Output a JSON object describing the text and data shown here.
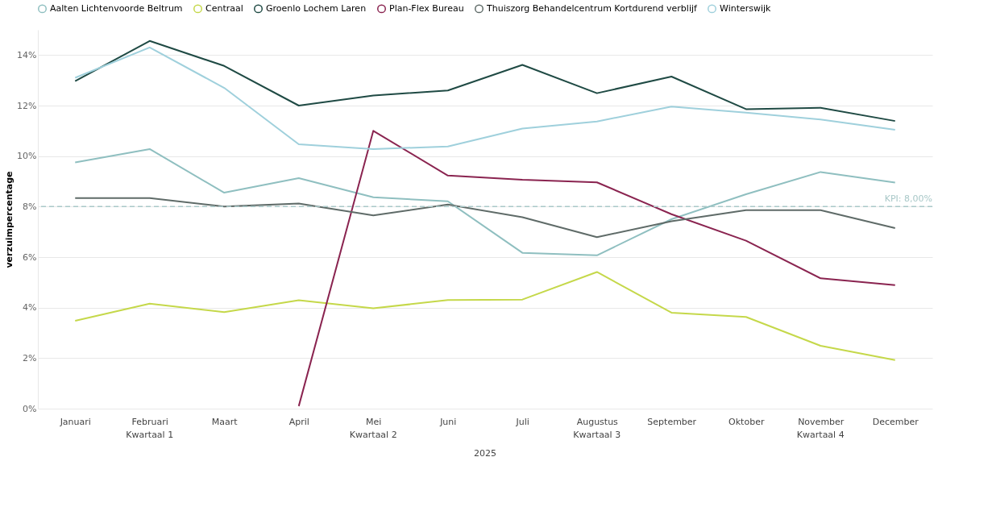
{
  "chart_data": {
    "type": "line",
    "ylabel": "verzuimpercentage",
    "categories": [
      "Januari",
      "Februari",
      "Maart",
      "April",
      "Mei",
      "Juni",
      "Juli",
      "Augustus",
      "September",
      "Oktober",
      "November",
      "December"
    ],
    "series": [
      {
        "name": "Aalten Lichtenvoorde Beltrum",
        "color": "#8fbfc0",
        "values": [
          9.75,
          10.28,
          8.55,
          9.13,
          8.37,
          8.21,
          6.17,
          6.07,
          7.5,
          8.49,
          9.37,
          8.95
        ]
      },
      {
        "name": "Centraal",
        "color": "#c5d84a",
        "values": [
          3.48,
          4.16,
          3.82,
          4.29,
          3.97,
          4.3,
          4.32,
          5.41,
          3.8,
          3.63,
          2.49,
          1.92
        ]
      },
      {
        "name": "Groenlo Lochem Laren",
        "color": "#1f4a44",
        "values": [
          12.97,
          14.56,
          13.57,
          12.0,
          12.4,
          12.6,
          13.61,
          12.49,
          13.15,
          11.86,
          11.91,
          11.39
        ]
      },
      {
        "name": "Plan-Flex Bureau",
        "color": "#8a2450",
        "values": [
          null,
          null,
          null,
          0.1,
          11.0,
          9.23,
          9.06,
          8.96,
          7.7,
          6.65,
          5.16,
          4.89
        ]
      },
      {
        "name": "Thuiszorg Behandelcentrum Kortdurend verblijf",
        "color": "#5f6b68",
        "values": [
          8.34,
          8.34,
          8.0,
          8.12,
          7.65,
          8.08,
          7.58,
          6.79,
          7.42,
          7.86,
          7.86,
          7.15
        ]
      },
      {
        "name": "Winterswijk",
        "color": "#9fd0dc",
        "values": [
          13.1,
          14.3,
          12.7,
          10.47,
          10.28,
          10.38,
          11.09,
          11.37,
          11.96,
          11.72,
          11.45,
          11.04
        ]
      }
    ],
    "ylim": [
      0,
      15
    ],
    "yticks": [
      {
        "value": 0,
        "label": "0%"
      },
      {
        "value": 2,
        "label": "2%"
      },
      {
        "value": 4,
        "label": "4%"
      },
      {
        "value": 6,
        "label": "6%"
      },
      {
        "value": 8,
        "label": "8%"
      },
      {
        "value": 10,
        "label": "10%"
      },
      {
        "value": 12,
        "label": "12%"
      },
      {
        "value": 14,
        "label": "14%"
      }
    ],
    "ref_lines": [
      {
        "axis": "y",
        "value": 8,
        "label": "KPI: 8,00%",
        "color": "#a9c8c8",
        "line_style": "dashed"
      }
    ],
    "annotations": [
      "Kwartaal 1",
      "Kwartaal 2",
      "Kwartaal 3",
      "Kwartaal 4",
      "2025"
    ],
    "grid": "y",
    "legend": "top",
    "marker": "none",
    "line_style": "solid"
  }
}
